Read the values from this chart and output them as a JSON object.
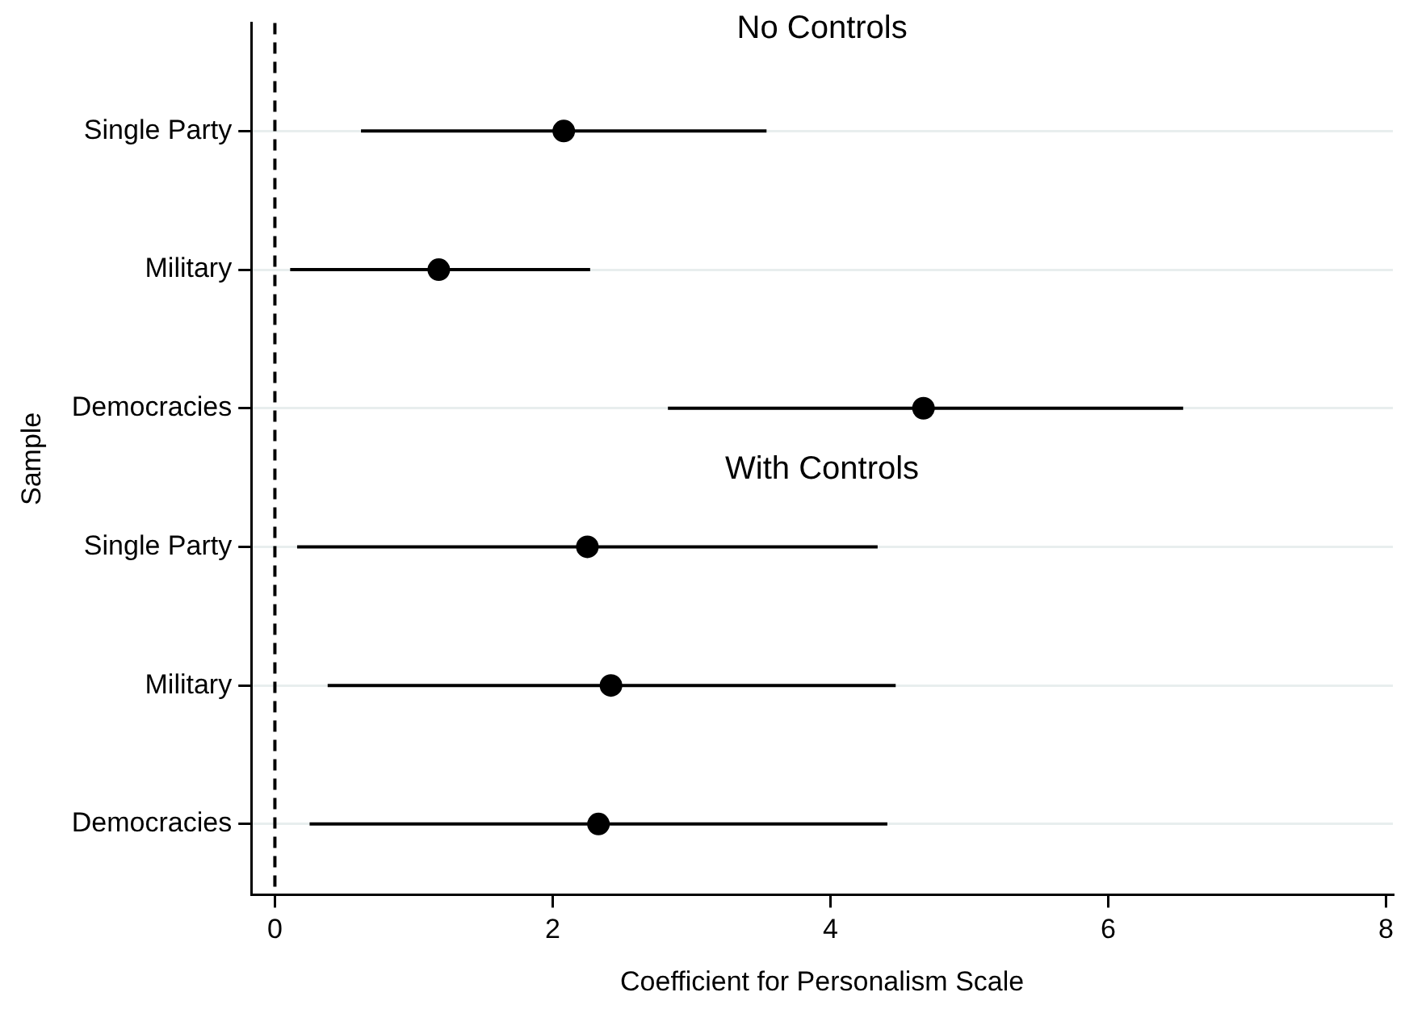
{
  "chart_data": {
    "type": "scatter",
    "title": "No Controls",
    "annotations": [
      "With Controls"
    ],
    "xlabel": "Coefficient for Personalism Scale",
    "ylabel": "Sample",
    "categories": [
      "Single Party",
      "Military",
      "Democracies",
      "Single Party",
      "Military",
      "Democracies"
    ],
    "orientation": "horizontal",
    "series": [
      {
        "color": "#000000",
        "values": [
          2.08,
          1.18,
          4.67,
          2.25,
          2.42,
          2.33
        ],
        "errors": [
          [
            0.62,
            3.54
          ],
          [
            0.11,
            2.27
          ],
          [
            2.83,
            6.54
          ],
          [
            0.16,
            4.34
          ],
          [
            0.38,
            4.47
          ],
          [
            0.25,
            4.41
          ]
        ]
      }
    ],
    "xlim": [
      -0.17,
      8.05
    ],
    "xticks": [
      0,
      2,
      4,
      6,
      8
    ],
    "ref_lines": [
      {
        "axis": "x",
        "value": 0,
        "color": "#000000",
        "line_style": "dashed"
      }
    ],
    "grid": "y",
    "legend": false,
    "marker": "circle"
  }
}
